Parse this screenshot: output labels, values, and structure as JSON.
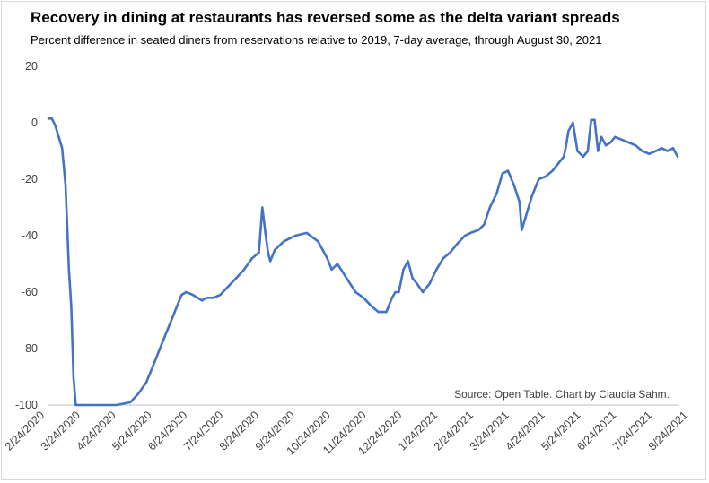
{
  "chart_data": {
    "type": "line",
    "title": "Recovery in dining at restaurants has reversed some as the delta variant spreads",
    "subtitle": "Percent difference in seated diners from reservations relative to 2019, 7-day average, through August 30, 2021",
    "source": "Source: Open Table. Chart by Claudia Sahm.",
    "xlabel": "",
    "ylabel": "",
    "ylim": [
      -100,
      20
    ],
    "yticks": [
      "20",
      "0",
      "-20",
      "-40",
      "-60",
      "-80",
      "-100"
    ],
    "ytick_values": [
      20,
      0,
      -20,
      -40,
      -60,
      -80,
      -100
    ],
    "xticks": [
      "2/24/2020",
      "3/24/2020",
      "4/24/2020",
      "5/24/2020",
      "6/24/2020",
      "7/24/2020",
      "8/24/2020",
      "9/24/2020",
      "10/24/2020",
      "11/24/2020",
      "12/24/2020",
      "1/24/2021",
      "2/24/2021",
      "3/24/2021",
      "4/24/2021",
      "5/24/2021",
      "6/24/2021",
      "7/24/2021",
      "8/24/2021"
    ],
    "grid": false,
    "legend": "none",
    "line_color": "#4472C4",
    "series": [
      {
        "x": [
          "2020-02-24",
          "2020-02-27",
          "2020-03-01",
          "2020-03-04",
          "2020-03-07",
          "2020-03-10",
          "2020-03-13",
          "2020-03-15",
          "2020-03-17",
          "2020-03-19",
          "2020-03-21",
          "2020-03-23",
          "2020-03-26",
          "2020-03-31",
          "2020-04-10",
          "2020-04-24",
          "2020-05-06",
          "2020-05-13",
          "2020-05-20",
          "2020-05-24",
          "2020-05-28",
          "2020-06-01",
          "2020-06-04",
          "2020-06-08",
          "2020-06-12",
          "2020-06-16",
          "2020-06-20",
          "2020-06-24",
          "2020-06-30",
          "2020-07-04",
          "2020-07-08",
          "2020-07-12",
          "2020-07-18",
          "2020-07-24",
          "2020-07-31",
          "2020-08-07",
          "2020-08-14",
          "2020-08-21",
          "2020-08-27",
          "2020-08-30",
          "2020-09-02",
          "2020-09-04",
          "2020-09-06",
          "2020-09-10",
          "2020-09-18",
          "2020-09-28",
          "2020-10-08",
          "2020-10-18",
          "2020-10-26",
          "2020-10-30",
          "2020-11-04",
          "2020-11-12",
          "2020-11-20",
          "2020-11-27",
          "2020-12-04",
          "2020-12-10",
          "2020-12-17",
          "2020-12-22",
          "2020-12-25",
          "2020-12-28",
          "2021-01-01",
          "2021-01-05",
          "2021-01-09",
          "2021-01-13",
          "2021-01-18",
          "2021-01-24",
          "2021-01-30",
          "2021-02-05",
          "2021-02-11",
          "2021-02-17",
          "2021-02-24",
          "2021-03-01",
          "2021-03-08",
          "2021-03-13",
          "2021-03-18",
          "2021-03-24",
          "2021-03-29",
          "2021-04-03",
          "2021-04-08",
          "2021-04-13",
          "2021-04-15",
          "2021-04-18",
          "2021-04-24",
          "2021-04-30",
          "2021-05-06",
          "2021-05-12",
          "2021-05-18",
          "2021-05-22",
          "2021-05-24",
          "2021-05-26",
          "2021-05-30",
          "2021-06-03",
          "2021-06-08",
          "2021-06-12",
          "2021-06-15",
          "2021-06-18",
          "2021-06-21",
          "2021-06-24",
          "2021-06-28",
          "2021-07-02",
          "2021-07-06",
          "2021-07-12",
          "2021-07-18",
          "2021-07-24",
          "2021-07-30",
          "2021-08-05",
          "2021-08-11",
          "2021-08-16",
          "2021-08-21",
          "2021-08-26",
          "2021-08-30"
        ],
        "y": [
          1.5,
          1.5,
          -1,
          -5,
          -9,
          -22,
          -52,
          -65,
          -90,
          -100,
          -100,
          -100,
          -100,
          -100,
          -100,
          -100,
          -99,
          -96,
          -92,
          -88,
          -84,
          -80,
          -77,
          -73,
          -69,
          -65,
          -61,
          -60,
          -61,
          -62,
          -63,
          -62,
          -62,
          -61,
          -58,
          -55,
          -52,
          -48,
          -46,
          -30,
          -40,
          -46,
          -49,
          -45,
          -42,
          -40,
          -39,
          -42,
          -48,
          -52,
          -50,
          -55,
          -60,
          -62,
          -65,
          -67,
          -67,
          -62,
          -60,
          -60,
          -52,
          -49,
          -55,
          -57,
          -60,
          -57,
          -52,
          -48,
          -46,
          -43,
          -40,
          -39,
          -38,
          -36,
          -30,
          -25,
          -18,
          -17,
          -22,
          -28,
          -38,
          -34,
          -26,
          -20,
          -19,
          -17,
          -14,
          -12,
          -8,
          -3,
          0,
          -10,
          -12,
          -10,
          1,
          1,
          -10,
          -5,
          -8,
          -7,
          -5,
          -6,
          -7,
          -8,
          -10,
          -11,
          -10,
          -9,
          -10,
          -9,
          -12
        ]
      }
    ]
  }
}
